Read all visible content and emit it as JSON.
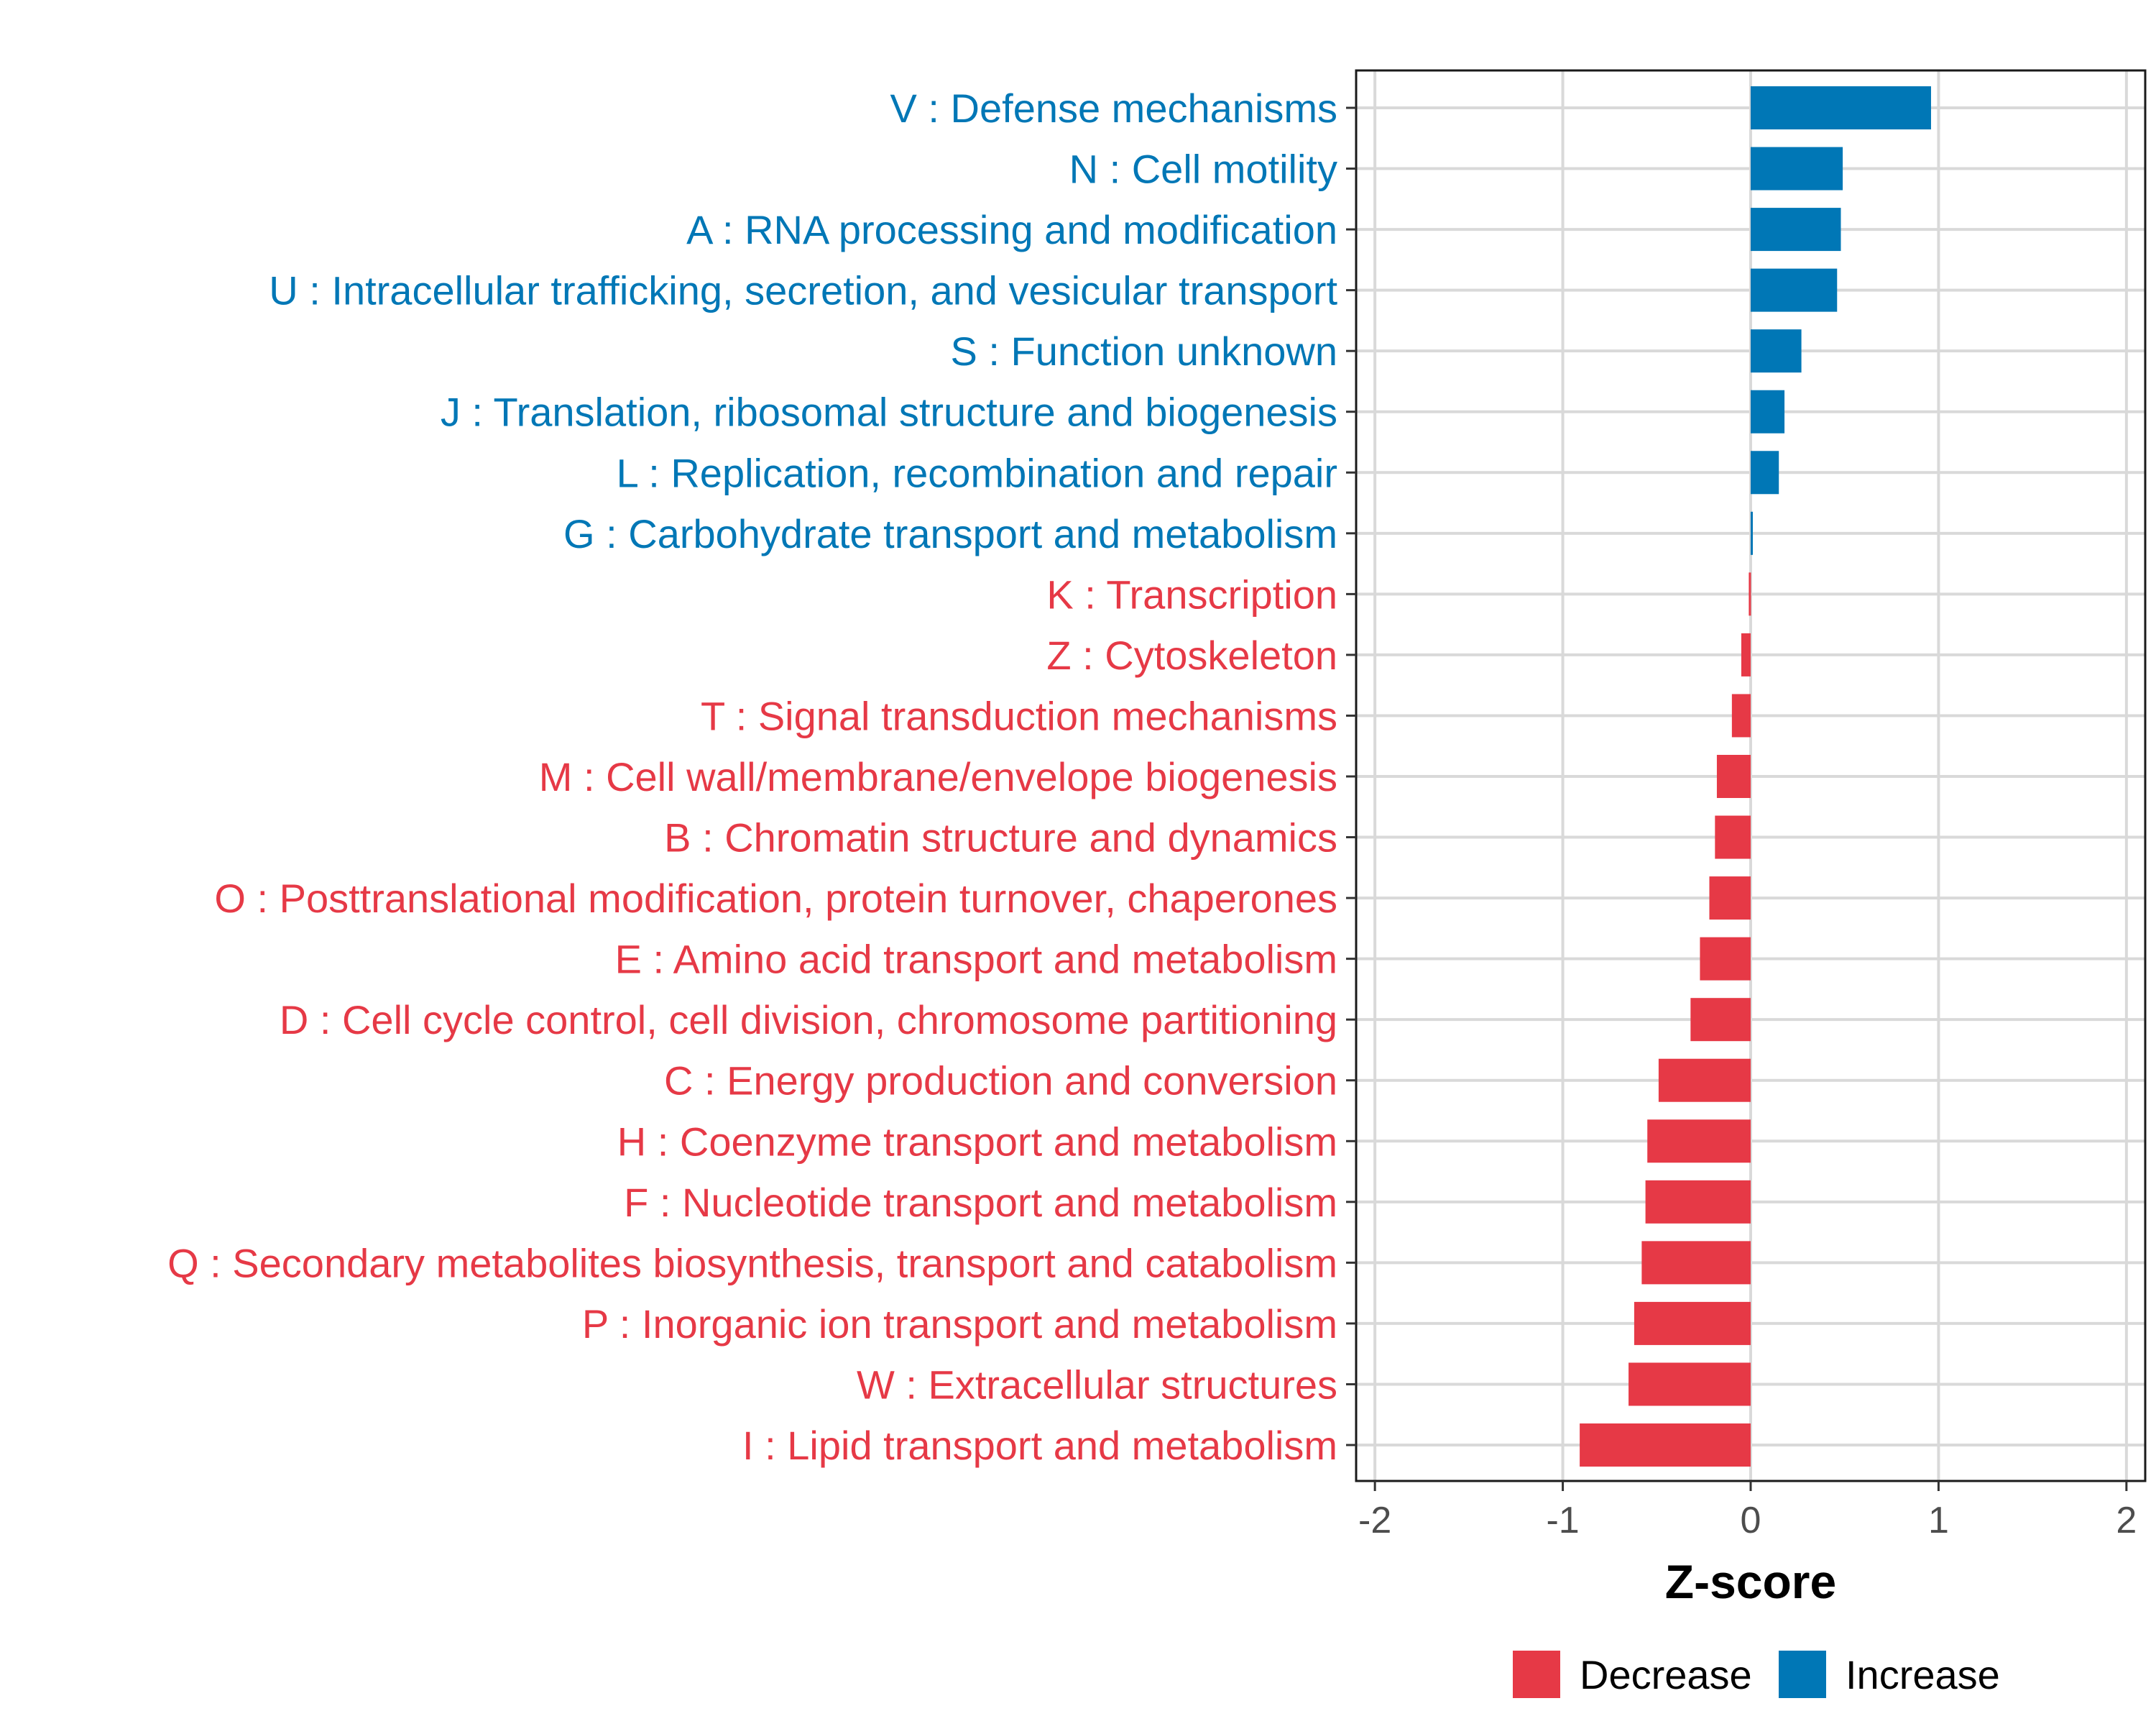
{
  "chart_data": {
    "type": "bar",
    "orientation": "horizontal",
    "title": "",
    "xlabel": "Z-score",
    "ylabel": "",
    "xlim": [
      -2.1,
      2.1
    ],
    "xticks": [
      -2,
      -1,
      0,
      1,
      2
    ],
    "xtick_labels": [
      "-2",
      "-1",
      "0",
      "1",
      "2"
    ],
    "grid": true,
    "legend": {
      "position": "bottom",
      "entries": [
        {
          "label": "Decrease",
          "color": "#E63946"
        },
        {
          "label": "Increase",
          "color": "#0077B6"
        }
      ]
    },
    "categories": [
      "V : Defense mechanisms",
      "N : Cell motility",
      "A : RNA processing and modification",
      "U : Intracellular trafficking, secretion, and vesicular transport",
      "S : Function unknown",
      "J : Translation, ribosomal structure and biogenesis",
      "L : Replication, recombination and repair",
      "G : Carbohydrate transport and metabolism",
      "K : Transcription",
      "Z : Cytoskeleton",
      "T : Signal transduction mechanisms",
      "M : Cell wall/membrane/envelope biogenesis",
      "B : Chromatin structure and dynamics",
      "O : Posttranslational modification, protein turnover, chaperones",
      "E : Amino acid transport and metabolism",
      "D : Cell cycle control, cell division, chromosome partitioning",
      "C : Energy production and conversion",
      "H : Coenzyme transport and metabolism",
      "F : Nucleotide transport and metabolism",
      "Q : Secondary metabolites biosynthesis, transport and catabolism",
      "P : Inorganic ion transport and metabolism",
      "W : Extracellular structures",
      "I : Lipid transport and metabolism"
    ],
    "values": [
      0.96,
      0.49,
      0.48,
      0.46,
      0.27,
      0.18,
      0.15,
      0.01,
      -0.01,
      -0.05,
      -0.1,
      -0.18,
      -0.19,
      -0.22,
      -0.27,
      -0.32,
      -0.49,
      -0.55,
      -0.56,
      -0.58,
      -0.62,
      -0.65,
      -0.91
    ],
    "colors": {
      "increase": "#0077B6",
      "decrease": "#E63946"
    }
  }
}
